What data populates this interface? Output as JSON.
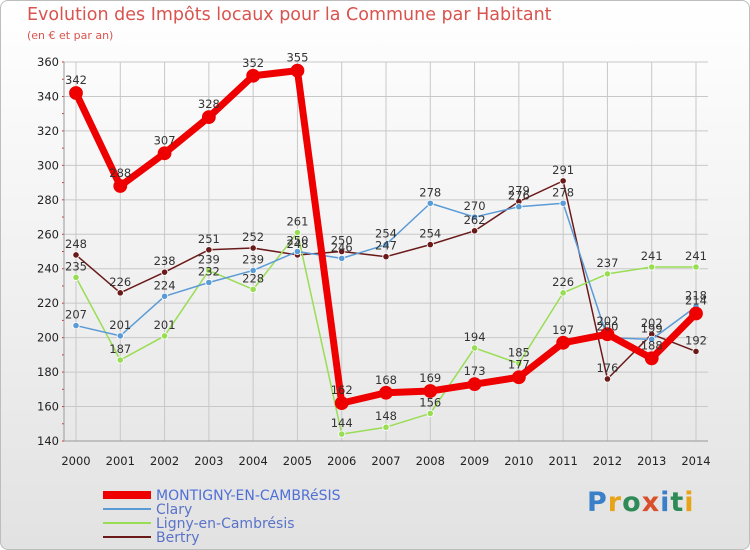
{
  "header": {
    "title": "Evolution des Impôts locaux pour la Commune par Habitant",
    "subtitle": "(en € et par an)"
  },
  "logo": {
    "text": "Proxiti"
  },
  "colors": {
    "montigny": "#ee0000",
    "clary": "#5b9bd5",
    "ligny": "#99dd55",
    "bertry": "#6b1a1a",
    "grid": "#c8c8c8",
    "axis_text": "#222222",
    "label_text": "#333333"
  },
  "chart_data": {
    "type": "line",
    "title": "Evolution des Impôts locaux pour la Commune par Habitant",
    "subtitle": "(en € et par an)",
    "xlabel": "",
    "ylabel": "",
    "x": [
      2000,
      2001,
      2002,
      2003,
      2004,
      2005,
      2006,
      2007,
      2008,
      2009,
      2010,
      2011,
      2012,
      2013,
      2014
    ],
    "ylim": [
      140,
      360
    ],
    "yticks": [
      140,
      160,
      180,
      200,
      220,
      240,
      260,
      280,
      300,
      320,
      340,
      360
    ],
    "grid": true,
    "legend_position": "bottom-left",
    "series": [
      {
        "name": "MONTIGNY-EN-CAMBRéSIS",
        "key": "montigny",
        "values": [
          342,
          288,
          307,
          328,
          352,
          355,
          162,
          168,
          169,
          173,
          177,
          197,
          202,
          188,
          214
        ]
      },
      {
        "name": "Clary",
        "key": "clary",
        "values": [
          207,
          201,
          224,
          232,
          239,
          250,
          246,
          254,
          278,
          270,
          276,
          278,
          200,
          199,
          218
        ]
      },
      {
        "name": "Ligny-en-Cambrésis",
        "key": "ligny",
        "values": [
          235,
          187,
          201,
          239,
          228,
          261,
          144,
          148,
          156,
          194,
          185,
          226,
          237,
          241,
          241
        ]
      },
      {
        "name": "Bertry",
        "key": "bertry",
        "values": [
          248,
          226,
          238,
          251,
          252,
          248,
          250,
          247,
          254,
          262,
          279,
          291,
          176,
          202,
          192
        ]
      }
    ]
  }
}
